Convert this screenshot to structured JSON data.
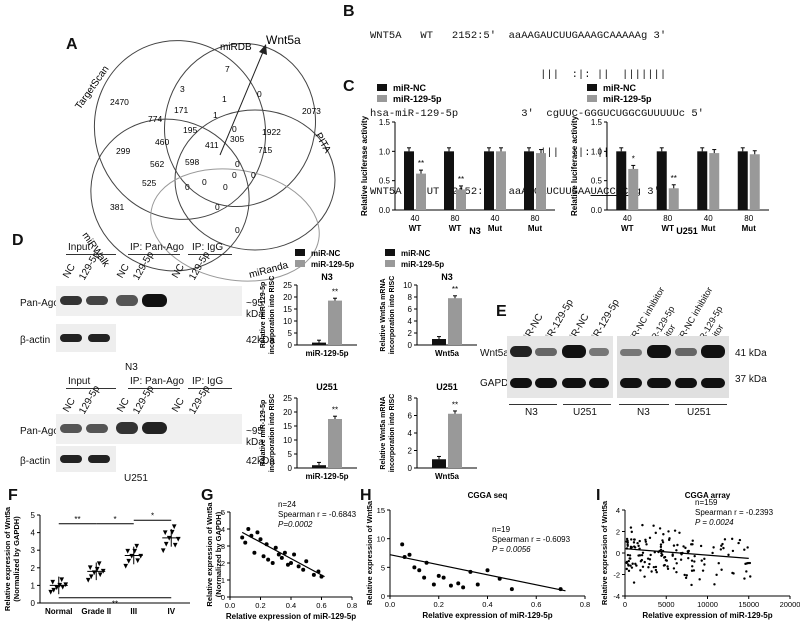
{
  "panels": {
    "A": "A",
    "B": "B",
    "C": "C",
    "D": "D",
    "E": "E",
    "F": "F",
    "G": "G",
    "H": "H",
    "I": "I"
  },
  "venn": {
    "sets": [
      "TargetScan",
      "miRDB",
      "PITA",
      "miRanda",
      "miRWalk"
    ],
    "target_gene": "Wnt5a",
    "counts": [
      "7",
      "2470",
      "3",
      "1",
      "0",
      "2073",
      "774",
      "171",
      "1",
      "0",
      "1922",
      "195",
      "305",
      "460",
      "411",
      "715",
      "299",
      "562",
      "598",
      "525",
      "0",
      "0",
      "0",
      "0",
      "0",
      "381",
      "0",
      "0",
      "0"
    ]
  },
  "seq": {
    "line1": "WNT5A   WT   2152:5'  aaAAGAUCUUGAAAGCAAAAAg 3'",
    "bars1": "                           |||  :|: ||  |||||||",
    "line2": "hsa-miR-129-5p          3'  cgUUC-GGGUCUGGCGUUUUUc 5'",
    "bars2": "                           |||  :|: ||",
    "line3": "WNT5A   MUT  2152:5'  aaAAGAUCUUGAA",
    "mut": "UACCCCC",
    "line3end": "g 3'"
  },
  "chart_data": [
    {
      "type": "bar",
      "panel": "C-N3",
      "title": "N3",
      "ylabel": "Relative luciferase activity",
      "categories": [
        "40 WT",
        "80 WT",
        "40 Mut",
        "80 Mut"
      ],
      "series": [
        {
          "name": "miR-NC",
          "values": [
            1.0,
            1.0,
            1.0,
            1.0
          ]
        },
        {
          "name": "miR-129-5p",
          "values": [
            0.62,
            0.35,
            1.0,
            0.97
          ]
        }
      ],
      "ylim": [
        0,
        1.5
      ],
      "yticks": [
        "0.0",
        "0.5",
        "1.0",
        "1.5"
      ],
      "sig": [
        "**",
        "**",
        "",
        ""
      ]
    },
    {
      "type": "bar",
      "panel": "C-U251",
      "title": "U251",
      "ylabel": "Relative luciferase activity",
      "categories": [
        "40 WT",
        "80 WT",
        "40 Mut",
        "80 Mut"
      ],
      "series": [
        {
          "name": "miR-NC",
          "values": [
            1.0,
            1.0,
            1.0,
            1.0
          ]
        },
        {
          "name": "miR-129-5p",
          "values": [
            0.7,
            0.37,
            0.97,
            0.95
          ]
        }
      ],
      "ylim": [
        0,
        1.5
      ],
      "yticks": [
        "0.0",
        "0.5",
        "1.0",
        "1.5"
      ],
      "sig": [
        "*",
        "**",
        "",
        ""
      ]
    },
    {
      "type": "bar",
      "panel": "D-N3-miR",
      "title": "N3",
      "ylabel": "Relative miR-129-5p incorporation into RISC",
      "categories": [
        "miR-129-5p"
      ],
      "series": [
        {
          "name": "miR-NC",
          "values": [
            1
          ]
        },
        {
          "name": "miR-129-5p",
          "values": [
            18.5
          ]
        }
      ],
      "ylim": [
        0,
        25
      ],
      "yticks": [
        "0",
        "5",
        "10",
        "15",
        "20",
        "25"
      ],
      "sig": [
        "**"
      ]
    },
    {
      "type": "bar",
      "panel": "D-N3-Wnt5a",
      "title": "N3",
      "ylabel": "Relative Wnt5a mRNA incorporation into RISC",
      "categories": [
        "Wnt5a"
      ],
      "series": [
        {
          "name": "miR-NC",
          "values": [
            1
          ]
        },
        {
          "name": "miR-129-5p",
          "values": [
            7.8
          ]
        }
      ],
      "ylim": [
        0,
        10
      ],
      "yticks": [
        "0",
        "2",
        "4",
        "6",
        "8",
        "10"
      ],
      "sig": [
        "**"
      ]
    },
    {
      "type": "bar",
      "panel": "D-U251-miR",
      "title": "U251",
      "ylabel": "Relative miR-129-5p incorporation into RISC",
      "categories": [
        "miR-129-5p"
      ],
      "series": [
        {
          "name": "miR-NC",
          "values": [
            1
          ]
        },
        {
          "name": "miR-129-5p",
          "values": [
            17.5
          ]
        }
      ],
      "ylim": [
        0,
        25
      ],
      "yticks": [
        "0",
        "5",
        "10",
        "15",
        "20",
        "25"
      ],
      "sig": [
        "**"
      ]
    },
    {
      "type": "bar",
      "panel": "D-U251-Wnt5a",
      "title": "U251",
      "ylabel": "Relative Wnt5a mRNA incorporation into RISC",
      "categories": [
        "Wnt5a"
      ],
      "series": [
        {
          "name": "miR-NC",
          "values": [
            1
          ]
        },
        {
          "name": "miR-129-5p",
          "values": [
            6.2
          ]
        }
      ],
      "ylim": [
        0,
        8
      ],
      "yticks": [
        "0",
        "2",
        "4",
        "6",
        "8"
      ],
      "sig": [
        "**"
      ]
    },
    {
      "type": "scatter",
      "panel": "F",
      "ylabel": "Relative expression of Wnt5a (Normalized by GAPDH)",
      "categories": [
        "Normal",
        "Grade II",
        "III",
        "IV"
      ],
      "means": [
        1.0,
        1.8,
        2.7,
        3.7
      ],
      "ylim": [
        0,
        5
      ],
      "yticks": [
        "0",
        "1",
        "2",
        "3",
        "4",
        "5"
      ],
      "sig": [
        "**",
        "*",
        "*",
        "**"
      ]
    },
    {
      "type": "scatter",
      "panel": "G",
      "xlabel": "Relative expression of  miR-129-5p",
      "ylabel": "Relative expression of Wnt5a (Normalized by GAPDH)",
      "xlim": [
        0,
        0.8
      ],
      "ylim": [
        0,
        5
      ],
      "xticks": [
        "0.0",
        "0.2",
        "0.4",
        "0.6",
        "0.8"
      ],
      "yticks": [
        "0",
        "1",
        "2",
        "3",
        "4",
        "5"
      ],
      "stats": [
        "n=24",
        "Spearman r = -0.6843",
        "P=0.0002"
      ],
      "x": [
        0.08,
        0.1,
        0.12,
        0.14,
        0.16,
        0.18,
        0.2,
        0.22,
        0.24,
        0.25,
        0.28,
        0.3,
        0.32,
        0.34,
        0.36,
        0.38,
        0.4,
        0.42,
        0.45,
        0.48,
        0.5,
        0.55,
        0.58,
        0.6
      ],
      "y": [
        3.5,
        3.2,
        4.0,
        3.6,
        2.6,
        3.8,
        3.4,
        2.4,
        3.1,
        2.2,
        2.0,
        2.9,
        2.5,
        2.3,
        2.6,
        1.9,
        2.0,
        2.5,
        1.8,
        1.6,
        2.1,
        1.3,
        1.5,
        1.2
      ]
    },
    {
      "type": "scatter",
      "panel": "H",
      "title": "CGGA  seq",
      "xlabel": "Relative expression of miR-129-5p",
      "ylabel": "Relative expression of Wnt5a",
      "xlim": [
        0,
        0.8
      ],
      "ylim": [
        0,
        15
      ],
      "xticks": [
        "0.0",
        "0.2",
        "0.4",
        "0.6",
        "0.8"
      ],
      "yticks": [
        "0",
        "5",
        "10",
        "15"
      ],
      "stats": [
        "n=19",
        "Spearman r = -0.6093",
        "P = 0.0056"
      ],
      "x": [
        0.05,
        0.06,
        0.08,
        0.1,
        0.12,
        0.14,
        0.15,
        0.18,
        0.2,
        0.22,
        0.25,
        0.28,
        0.3,
        0.33,
        0.36,
        0.4,
        0.45,
        0.5,
        0.7
      ],
      "y": [
        9.0,
        6.8,
        7.2,
        5.0,
        4.5,
        3.2,
        5.8,
        2.0,
        3.5,
        3.2,
        1.8,
        2.2,
        1.5,
        4.2,
        2.0,
        4.5,
        3.0,
        1.2,
        1.2
      ]
    },
    {
      "type": "scatter",
      "panel": "I",
      "title": "CGGA  array",
      "xlabel": "Relative expression of miR-129-5p",
      "ylabel": "Relative expression of Wnt5a",
      "xlim": [
        0,
        20000
      ],
      "ylim": [
        -4,
        4
      ],
      "xticks": [
        "0",
        "5000",
        "10000",
        "15000",
        "20000"
      ],
      "yticks": [
        "-4",
        "-2",
        "0",
        "2",
        "4"
      ],
      "stats": [
        "n=159",
        "Spearman r = -0.2393",
        "P = 0.0024"
      ]
    }
  ],
  "legend": {
    "nc": "miR-NC",
    "mir": "miR-129-5p"
  },
  "cx_labels": {
    "n3": "N3",
    "u251": "U251"
  },
  "blotD": {
    "input": "Input",
    "ipago": "IP:  Pan-Ago",
    "ipigg": "IP:  IgG",
    "nc": "NC",
    "p": "129-5p",
    "panago": "Pan-Ago",
    "actin": "β-actin",
    "kda95": "~95 kDa",
    "kda42": "42kDa",
    "cellN3": "N3",
    "cellU251": "U251"
  },
  "blotE": {
    "lanes": [
      "miR-NC",
      "miR-129-5p",
      "miR-NC",
      "miR-129-5p",
      "miR-NC inhibitor",
      "miR-129-5p inhibitor",
      "miR-NC inhibitor",
      "miR-129-5p inhibitor"
    ],
    "wnt5a": "Wnt5a",
    "gapdh": "GAPDH",
    "kda41": "41 kDa",
    "kda37": "37 kDa",
    "groups": [
      "N3",
      "U251",
      "N3",
      "U251"
    ]
  }
}
